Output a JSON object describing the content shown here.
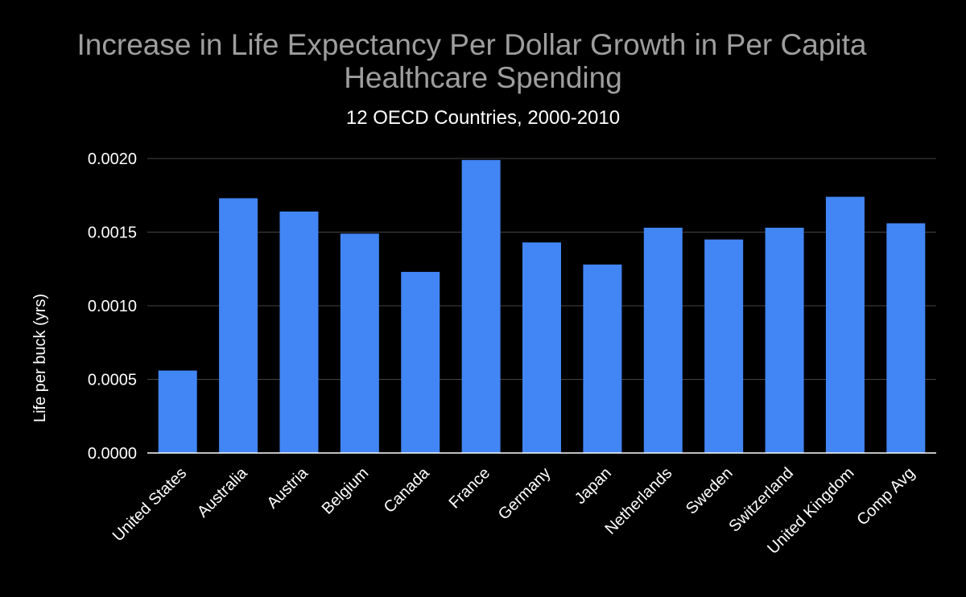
{
  "chart_data": {
    "type": "bar",
    "title_lines": [
      "Increase in Life Expectancy Per Dollar Growth in Per Capita",
      "Healthcare Spending"
    ],
    "subtitle": "12 OECD Countries, 2000-2010",
    "xlabel": "",
    "ylabel": "Life per buck (yrs)",
    "ylim": [
      0,
      0.002
    ],
    "yticks": [
      "0.0000",
      "0.0005",
      "0.0010",
      "0.0015",
      "0.0020"
    ],
    "ytick_values": [
      0,
      0.0005,
      0.001,
      0.0015,
      0.002
    ],
    "grid": true,
    "legend": "none",
    "categories": [
      "United States",
      "Australia",
      "Austria",
      "Belgium",
      "Canada",
      "France",
      "Germany",
      "Japan",
      "Netherlands",
      "Sweden",
      "Switzerland",
      "United Kingdom",
      "Comp Avg"
    ],
    "values": [
      0.00056,
      0.00173,
      0.00164,
      0.00149,
      0.00123,
      0.00199,
      0.00143,
      0.00128,
      0.00153,
      0.00145,
      0.00153,
      0.00174,
      0.00156
    ],
    "colors": {
      "background": "#000000",
      "bar": "#4285f4",
      "title": "#9e9e9e",
      "text": "#ffffff",
      "gridline": "#444444",
      "baseline": "#ffffff"
    }
  }
}
